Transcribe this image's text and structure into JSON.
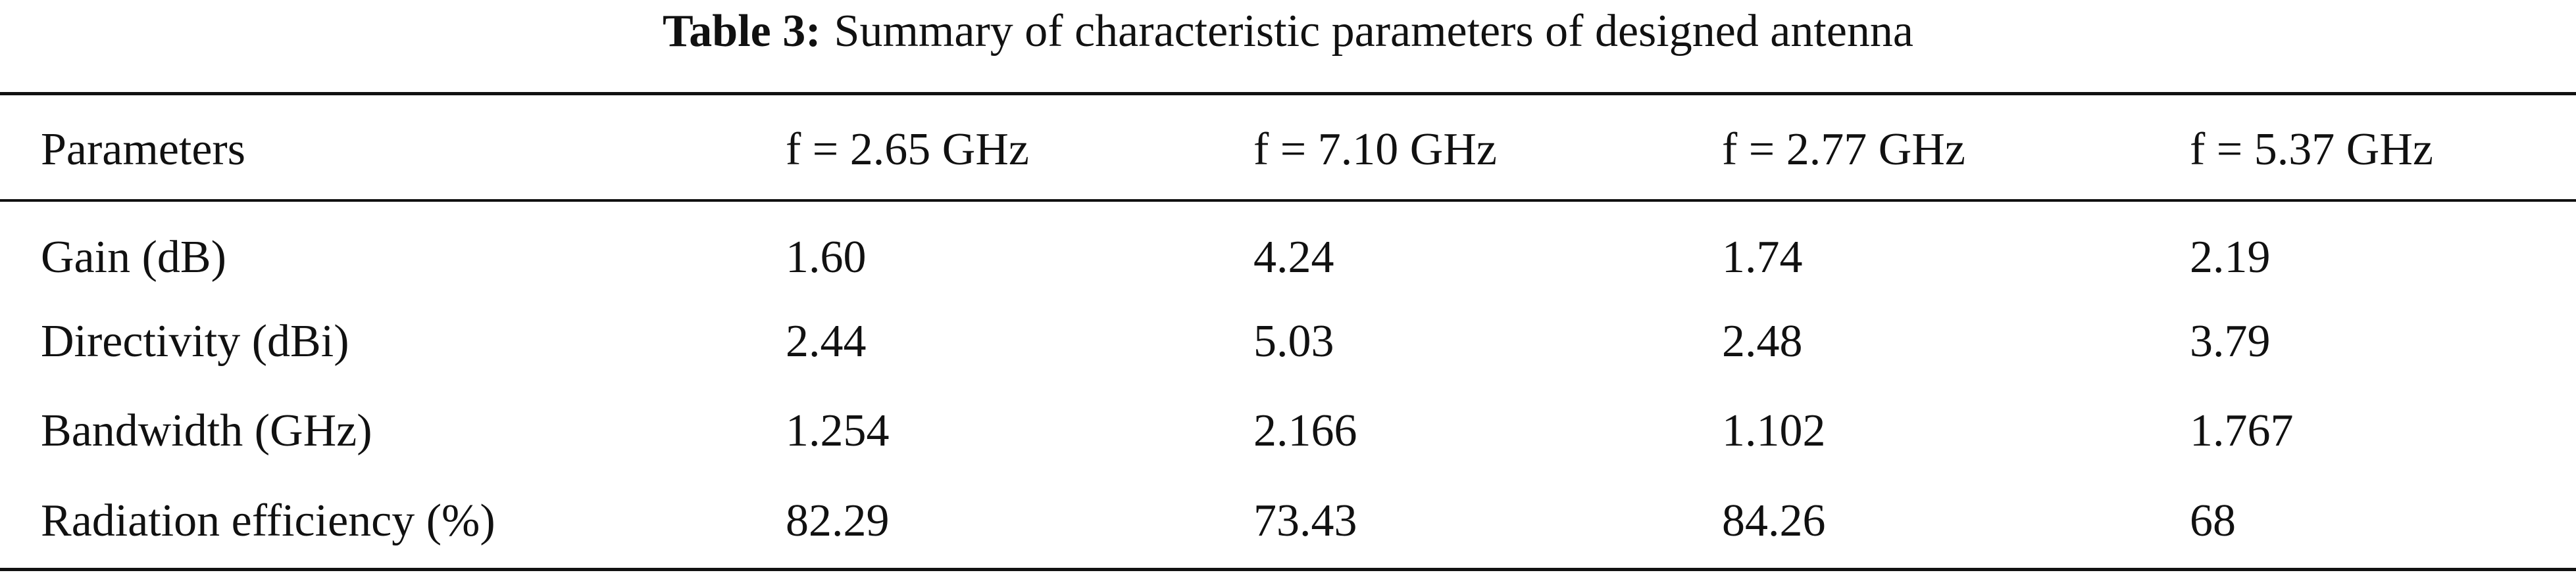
{
  "caption": {
    "label": "Table 3:",
    "text": "Summary of characteristic parameters of designed antenna"
  },
  "table": {
    "header": [
      "Parameters",
      "f = 2.65 GHz",
      "f = 7.10 GHz",
      "f = 2.77 GHz",
      "f = 5.37 GHz"
    ],
    "rows": [
      [
        "Gain (dB)",
        "1.60",
        "4.24",
        "1.74",
        "2.19"
      ],
      [
        "Directivity (dBi)",
        "2.44",
        "5.03",
        "2.48",
        "3.79"
      ],
      [
        "Bandwidth (GHz)",
        "1.254",
        "2.166",
        "1.102",
        "1.767"
      ],
      [
        "Radiation efficiency (%)",
        "82.29",
        "73.43",
        "84.26",
        "68"
      ]
    ]
  }
}
